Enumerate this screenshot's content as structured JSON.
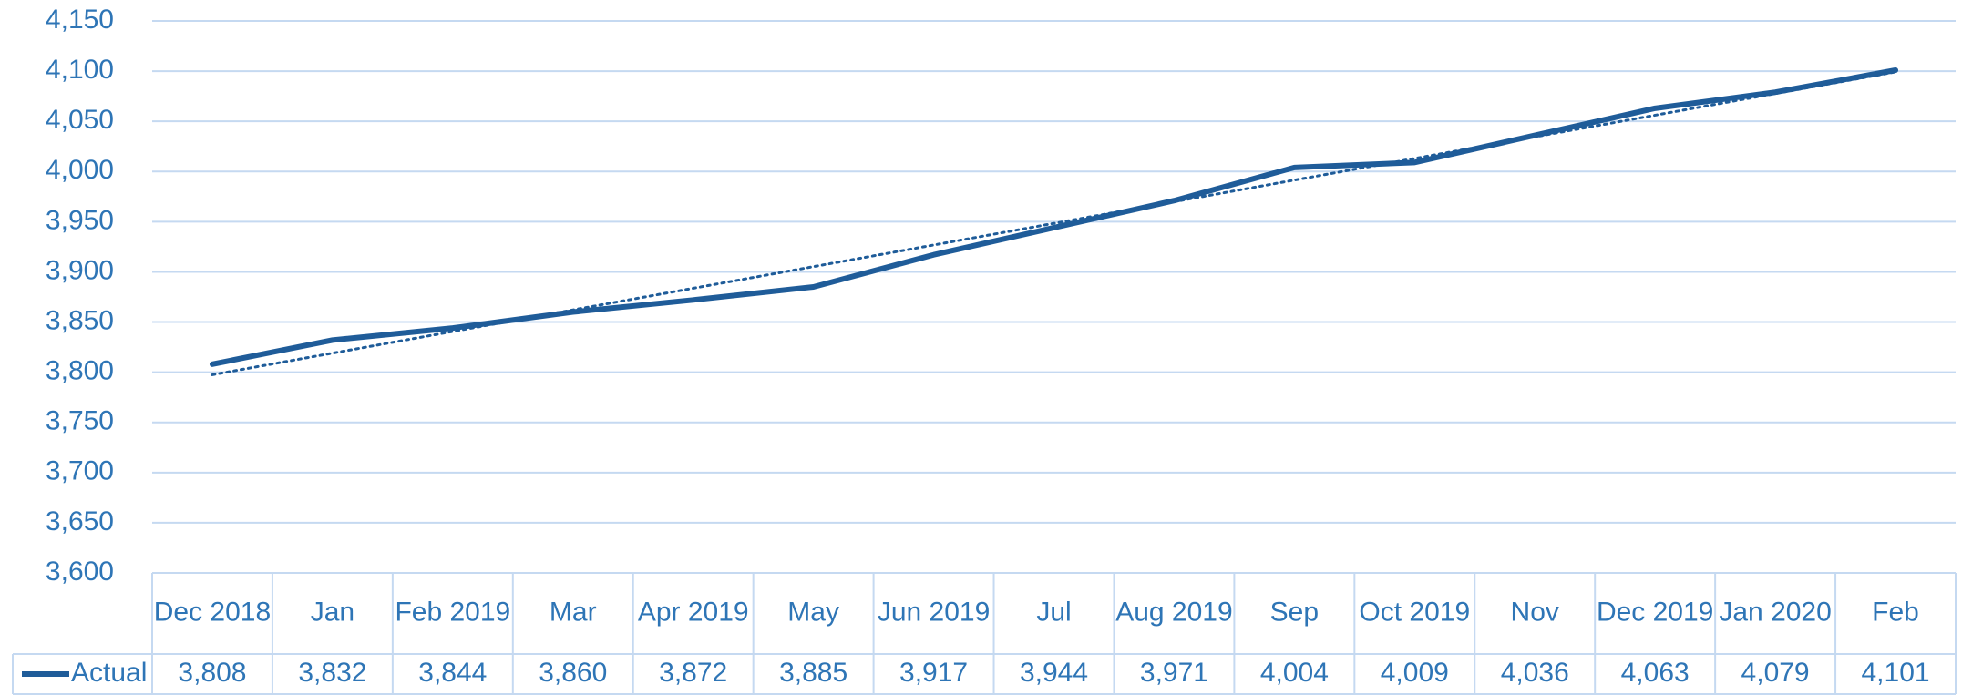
{
  "chart_data": {
    "type": "line",
    "categories": [
      "Dec 2018",
      "Jan",
      "Feb 2019",
      "Mar",
      "Apr 2019",
      "May",
      "Jun 2019",
      "Jul",
      "Aug 2019",
      "Sep",
      "Oct 2019",
      "Nov",
      "Dec 2019",
      "Jan 2020",
      "Feb"
    ],
    "series": [
      {
        "name": "Actual",
        "color": "#1f5c99",
        "values": [
          3808,
          3832,
          3844,
          3860,
          3872,
          3885,
          3917,
          3944,
          3971,
          4004,
          4009,
          4036,
          4063,
          4079,
          4101
        ],
        "value_labels": [
          "3,808",
          "3,832",
          "3,844",
          "3,860",
          "3,872",
          "3,885",
          "3,917",
          "3,944",
          "3,971",
          "4,004",
          "4,009",
          "4,036",
          "4,063",
          "4,079",
          "4,101"
        ],
        "trendline": "linear"
      }
    ],
    "ylim": [
      3600,
      4150
    ],
    "yticks": [
      {
        "value": 3600,
        "label": "3,600"
      },
      {
        "value": 3650,
        "label": "3,650"
      },
      {
        "value": 3700,
        "label": "3,700"
      },
      {
        "value": 3750,
        "label": "3,750"
      },
      {
        "value": 3800,
        "label": "3,800"
      },
      {
        "value": 3850,
        "label": "3,850"
      },
      {
        "value": 3900,
        "label": "3,900"
      },
      {
        "value": 3950,
        "label": "3,950"
      },
      {
        "value": 4000,
        "label": "4,000"
      },
      {
        "value": 4050,
        "label": "4,050"
      },
      {
        "value": 4100,
        "label": "4,100"
      },
      {
        "value": 4150,
        "label": "4,150"
      }
    ],
    "grid": true,
    "data_table": true
  }
}
